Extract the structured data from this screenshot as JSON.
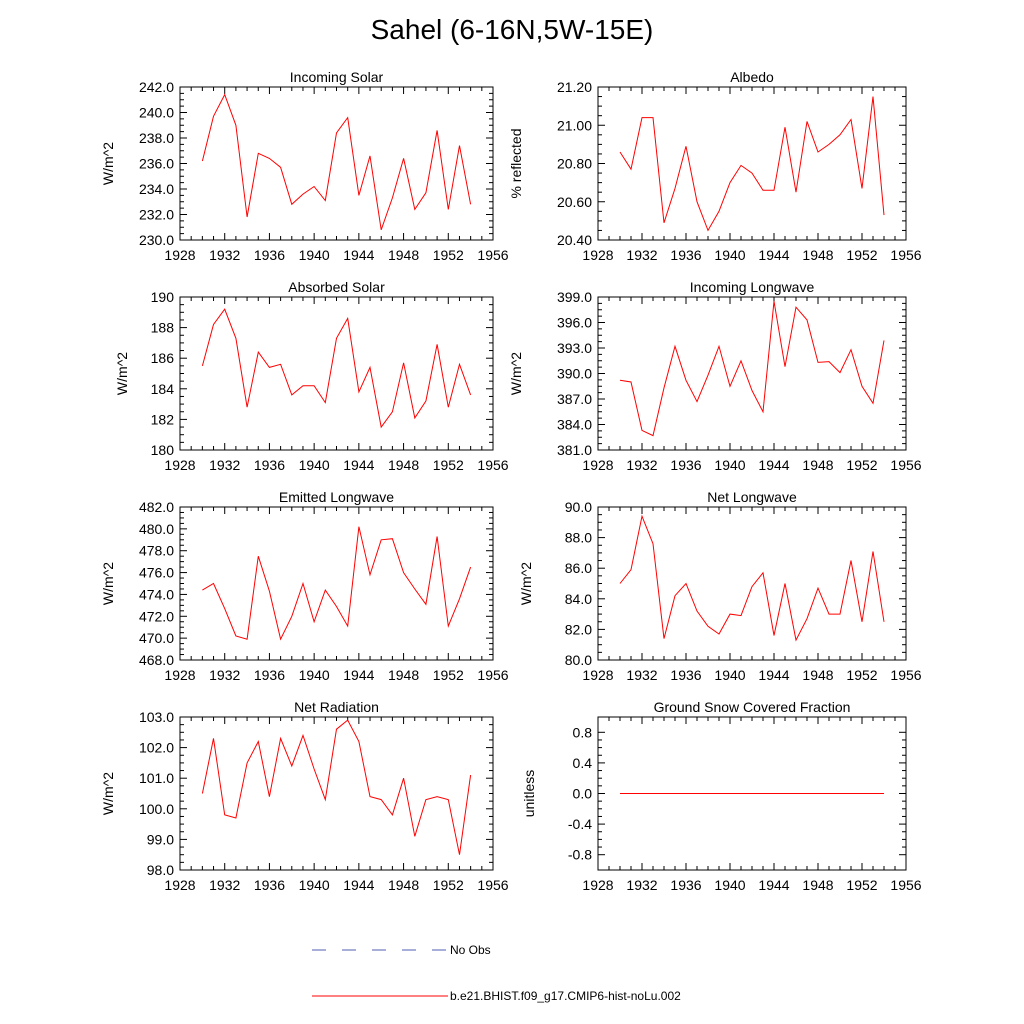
{
  "title": "Sahel (6-16N,5W-15E)",
  "colors": {
    "model_line": "#ff0000",
    "obs_line": "#4f5fb0",
    "axis": "#000000"
  },
  "legend": {
    "obs_label": "No Obs",
    "model_label": "b.e21.BHIST.f09_g17.CMIP6-hist-noLu.002"
  },
  "chart_data": [
    {
      "type": "line",
      "title": "Incoming Solar",
      "ylabel": "W/m^2",
      "xlim": [
        1928,
        1956
      ],
      "ylim": [
        230.0,
        242.0
      ],
      "xticks": [
        1928,
        1932,
        1936,
        1940,
        1944,
        1948,
        1952,
        1956
      ],
      "yticks": [
        "230.0",
        "232.0",
        "234.0",
        "236.0",
        "238.0",
        "240.0",
        "242.0"
      ],
      "series": [
        {
          "name": "b.e21.BHIST.f09_g17.CMIP6-hist-noLu.002",
          "x": [
            1930,
            1931,
            1932,
            1933,
            1934,
            1935,
            1936,
            1937,
            1938,
            1939,
            1940,
            1941,
            1942,
            1943,
            1944,
            1945,
            1946,
            1947,
            1948,
            1949,
            1950,
            1951,
            1952,
            1953,
            1954
          ],
          "y": [
            236.2,
            239.7,
            241.4,
            239.0,
            231.8,
            236.8,
            236.4,
            235.7,
            232.8,
            233.6,
            234.2,
            233.1,
            238.4,
            239.6,
            233.5,
            236.6,
            230.8,
            233.3,
            236.4,
            232.4,
            233.7,
            238.6,
            232.4,
            237.4,
            232.8
          ]
        }
      ]
    },
    {
      "type": "line",
      "title": "Albedo",
      "ylabel": "% reflected",
      "xlim": [
        1928,
        1956
      ],
      "ylim": [
        20.4,
        21.2
      ],
      "xticks": [
        1928,
        1932,
        1936,
        1940,
        1944,
        1948,
        1952,
        1956
      ],
      "yticks": [
        "20.40",
        "20.60",
        "20.80",
        "21.00",
        "21.20"
      ],
      "series": [
        {
          "name": "b.e21.BHIST.f09_g17.CMIP6-hist-noLu.002",
          "x": [
            1930,
            1931,
            1932,
            1933,
            1934,
            1935,
            1936,
            1937,
            1938,
            1939,
            1940,
            1941,
            1942,
            1943,
            1944,
            1945,
            1946,
            1947,
            1948,
            1949,
            1950,
            1951,
            1952,
            1953,
            1954
          ],
          "y": [
            20.86,
            20.77,
            21.04,
            21.04,
            20.49,
            20.67,
            20.89,
            20.6,
            20.45,
            20.55,
            20.7,
            20.79,
            20.75,
            20.66,
            20.66,
            20.99,
            20.65,
            21.02,
            20.86,
            20.9,
            20.95,
            21.03,
            20.67,
            21.15,
            20.53
          ]
        }
      ]
    },
    {
      "type": "line",
      "title": "Absorbed Solar",
      "ylabel": "W/m^2",
      "xlim": [
        1928,
        1956
      ],
      "ylim": [
        180,
        190
      ],
      "xticks": [
        1928,
        1932,
        1936,
        1940,
        1944,
        1948,
        1952,
        1956
      ],
      "yticks": [
        "180",
        "182",
        "184",
        "186",
        "188",
        "190"
      ],
      "series": [
        {
          "name": "b.e21.BHIST.f09_g17.CMIP6-hist-noLu.002",
          "x": [
            1930,
            1931,
            1932,
            1933,
            1934,
            1935,
            1936,
            1937,
            1938,
            1939,
            1940,
            1941,
            1942,
            1943,
            1944,
            1945,
            1946,
            1947,
            1948,
            1949,
            1950,
            1951,
            1952,
            1953,
            1954
          ],
          "y": [
            185.5,
            188.2,
            189.2,
            187.3,
            182.8,
            186.4,
            185.4,
            185.6,
            183.6,
            184.2,
            184.2,
            183.1,
            187.3,
            188.6,
            183.8,
            185.4,
            181.5,
            182.5,
            185.7,
            182.1,
            183.2,
            186.9,
            182.8,
            185.6,
            183.6
          ]
        }
      ]
    },
    {
      "type": "line",
      "title": "Incoming Longwave",
      "ylabel": "W/m^2",
      "xlim": [
        1928,
        1956
      ],
      "ylim": [
        381.0,
        399.0
      ],
      "xticks": [
        1928,
        1932,
        1936,
        1940,
        1944,
        1948,
        1952,
        1956
      ],
      "yticks": [
        "381.0",
        "384.0",
        "387.0",
        "390.0",
        "393.0",
        "396.0",
        "399.0"
      ],
      "series": [
        {
          "name": "b.e21.BHIST.f09_g17.CMIP6-hist-noLu.002",
          "x": [
            1930,
            1931,
            1932,
            1933,
            1934,
            1935,
            1936,
            1937,
            1938,
            1939,
            1940,
            1941,
            1942,
            1943,
            1944,
            1945,
            1946,
            1947,
            1948,
            1949,
            1950,
            1951,
            1952,
            1953,
            1954
          ],
          "y": [
            389.2,
            389.0,
            383.3,
            382.7,
            388.3,
            393.2,
            389.2,
            386.7,
            389.8,
            393.2,
            388.5,
            391.5,
            388.0,
            385.5,
            398.5,
            390.8,
            397.8,
            396.3,
            391.3,
            391.4,
            390.1,
            392.8,
            388.5,
            386.5,
            393.9
          ]
        }
      ]
    },
    {
      "type": "line",
      "title": "Emitted Longwave",
      "ylabel": "W/m^2",
      "xlim": [
        1928,
        1956
      ],
      "ylim": [
        468.0,
        482.0
      ],
      "xticks": [
        1928,
        1932,
        1936,
        1940,
        1944,
        1948,
        1952,
        1956
      ],
      "yticks": [
        "468.0",
        "470.0",
        "472.0",
        "474.0",
        "476.0",
        "478.0",
        "480.0",
        "482.0"
      ],
      "series": [
        {
          "name": "b.e21.BHIST.f09_g17.CMIP6-hist-noLu.002",
          "x": [
            1930,
            1931,
            1932,
            1933,
            1934,
            1935,
            1936,
            1937,
            1938,
            1939,
            1940,
            1941,
            1942,
            1943,
            1944,
            1945,
            1946,
            1947,
            1948,
            1949,
            1950,
            1951,
            1952,
            1953,
            1954
          ],
          "y": [
            474.4,
            475.0,
            472.7,
            470.2,
            469.9,
            477.5,
            474.3,
            469.9,
            472.0,
            475.0,
            471.5,
            474.4,
            472.9,
            471.1,
            480.2,
            475.8,
            479.0,
            479.1,
            476.0,
            474.5,
            473.1,
            479.3,
            471.1,
            473.6,
            476.5
          ]
        }
      ]
    },
    {
      "type": "line",
      "title": "Net Longwave",
      "ylabel": "W/m^2",
      "xlim": [
        1928,
        1956
      ],
      "ylim": [
        80.0,
        90.0
      ],
      "xticks": [
        1928,
        1932,
        1936,
        1940,
        1944,
        1948,
        1952,
        1956
      ],
      "yticks": [
        "80.0",
        "82.0",
        "84.0",
        "86.0",
        "88.0",
        "90.0"
      ],
      "series": [
        {
          "name": "b.e21.BHIST.f09_g17.CMIP6-hist-noLu.002",
          "x": [
            1930,
            1931,
            1932,
            1933,
            1934,
            1935,
            1936,
            1937,
            1938,
            1939,
            1940,
            1941,
            1942,
            1943,
            1944,
            1945,
            1946,
            1947,
            1948,
            1949,
            1950,
            1951,
            1952,
            1953,
            1954
          ],
          "y": [
            85.0,
            85.9,
            89.4,
            87.6,
            81.4,
            84.2,
            85.0,
            83.2,
            82.2,
            81.7,
            83.0,
            82.9,
            84.8,
            85.7,
            81.6,
            85.0,
            81.3,
            82.7,
            84.7,
            83.0,
            83.0,
            86.5,
            82.5,
            87.1,
            82.5
          ]
        }
      ]
    },
    {
      "type": "line",
      "title": "Net Radiation",
      "ylabel": "W/m^2",
      "xlim": [
        1928,
        1956
      ],
      "ylim": [
        98.0,
        103.0
      ],
      "xticks": [
        1928,
        1932,
        1936,
        1940,
        1944,
        1948,
        1952,
        1956
      ],
      "yticks": [
        "98.0",
        "99.0",
        "100.0",
        "101.0",
        "102.0",
        "103.0"
      ],
      "series": [
        {
          "name": "b.e21.BHIST.f09_g17.CMIP6-hist-noLu.002",
          "x": [
            1930,
            1931,
            1932,
            1933,
            1934,
            1935,
            1936,
            1937,
            1938,
            1939,
            1940,
            1941,
            1942,
            1943,
            1944,
            1945,
            1946,
            1947,
            1948,
            1949,
            1950,
            1951,
            1952,
            1953,
            1954
          ],
          "y": [
            100.5,
            102.3,
            99.8,
            99.7,
            101.5,
            102.2,
            100.4,
            102.3,
            101.4,
            102.4,
            101.3,
            100.3,
            102.6,
            102.9,
            102.2,
            100.4,
            100.3,
            99.8,
            101.0,
            99.1,
            100.3,
            100.4,
            100.3,
            98.5,
            101.1
          ]
        }
      ]
    },
    {
      "type": "line",
      "title": "Ground Snow Covered Fraction",
      "ylabel": "unitless",
      "xlim": [
        1928,
        1956
      ],
      "ylim": [
        -1.0,
        1.0
      ],
      "xticks": [
        1928,
        1932,
        1936,
        1940,
        1944,
        1948,
        1952,
        1956
      ],
      "yticks": [
        "-0.8",
        "-0.4",
        "0.0",
        "0.4",
        "0.8"
      ],
      "ytick_values": [
        -0.8,
        -0.4,
        0.0,
        0.4,
        0.8
      ],
      "series": [
        {
          "name": "b.e21.BHIST.f09_g17.CMIP6-hist-noLu.002",
          "x": [
            1930,
            1931,
            1932,
            1933,
            1934,
            1935,
            1936,
            1937,
            1938,
            1939,
            1940,
            1941,
            1942,
            1943,
            1944,
            1945,
            1946,
            1947,
            1948,
            1949,
            1950,
            1951,
            1952,
            1953,
            1954
          ],
          "y": [
            0,
            0,
            0,
            0,
            0,
            0,
            0,
            0,
            0,
            0,
            0,
            0,
            0,
            0,
            0,
            0,
            0,
            0,
            0,
            0,
            0,
            0,
            0,
            0,
            0
          ]
        }
      ]
    }
  ]
}
